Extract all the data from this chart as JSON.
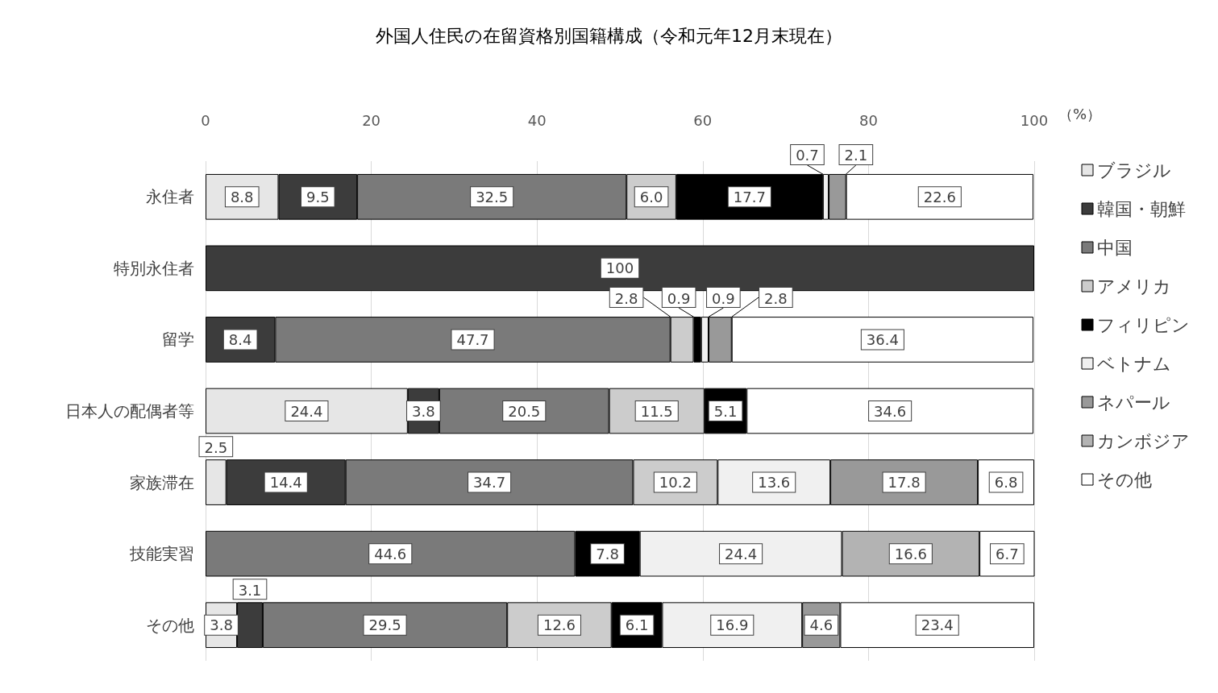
{
  "chart_data": {
    "type": "bar",
    "orientation": "horizontal",
    "stacked": true,
    "title": "外国人住民の在留資格別国籍構成（令和元年12月末現在）",
    "xlabel": "（%）",
    "categories": [
      "永住者",
      "特別永住者",
      "留学",
      "日本人の配偶者等",
      "家族滞在",
      "技能実習",
      "その他"
    ],
    "series": [
      {
        "name": "ブラジル",
        "color": "#e6e6e6",
        "values": [
          8.8,
          null,
          null,
          24.4,
          2.5,
          null,
          3.8
        ]
      },
      {
        "name": "韓国・朝鮮",
        "color": "#3c3c3c",
        "values": [
          9.5,
          100,
          8.4,
          3.8,
          14.4,
          null,
          3.1
        ]
      },
      {
        "name": "中国",
        "color": "#7a7a7a",
        "values": [
          32.5,
          null,
          47.7,
          20.5,
          34.7,
          44.6,
          29.5
        ]
      },
      {
        "name": "アメリカ",
        "color": "#cccccc",
        "values": [
          6.0,
          null,
          2.8,
          11.5,
          10.2,
          null,
          12.6
        ],
        "value_labels": [
          "6.0",
          null,
          "2.8",
          "11.5",
          "10.2",
          null,
          "12.6"
        ]
      },
      {
        "name": "フィリピン",
        "color": "#000000",
        "values": [
          17.7,
          null,
          0.9,
          5.1,
          null,
          7.8,
          6.1
        ]
      },
      {
        "name": "ベトナム",
        "color": "#f0f0f0",
        "values": [
          0.7,
          null,
          0.9,
          null,
          13.6,
          24.4,
          16.9
        ]
      },
      {
        "name": "ネパール",
        "color": "#999999",
        "values": [
          2.1,
          null,
          2.8,
          null,
          17.8,
          null,
          4.6
        ]
      },
      {
        "name": "カンボジア",
        "color": "#b3b3b3",
        "values": [
          null,
          null,
          null,
          null,
          null,
          16.6,
          null
        ]
      },
      {
        "name": "その他",
        "color": "#ffffff",
        "values": [
          22.6,
          null,
          36.4,
          34.6,
          6.8,
          6.7,
          23.4
        ]
      }
    ],
    "xlim": [
      0,
      100
    ],
    "xticks": [
      0,
      20,
      40,
      60,
      80,
      100
    ],
    "grid": "x",
    "legend": "right",
    "data_labels": true
  }
}
